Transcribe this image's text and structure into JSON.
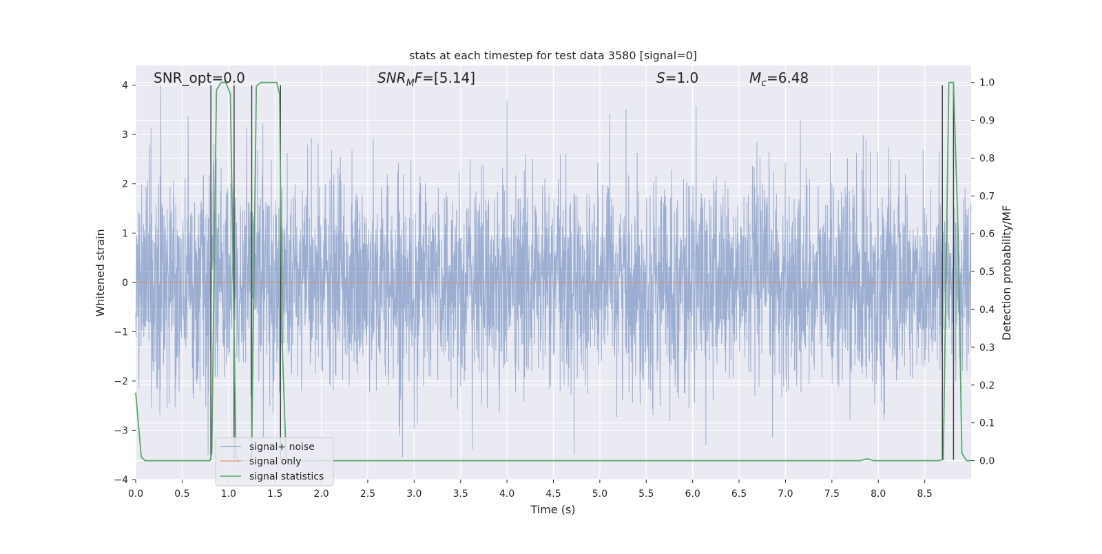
{
  "chart_data": {
    "type": "line",
    "title": "stats at each timestep for test data 3580 [signal=0]",
    "xlabel": "Time (s)",
    "ylabel_left": "Whitened strain",
    "ylabel_right": "Detection probability/MF",
    "xlim": [
      0.0,
      9.0
    ],
    "ylim_left": [
      -4.0,
      4.4
    ],
    "ylim_right": [
      -0.05,
      1.045
    ],
    "x_ticks": [
      0.0,
      0.5,
      1.0,
      1.5,
      2.0,
      2.5,
      3.0,
      3.5,
      4.0,
      4.5,
      5.0,
      5.5,
      6.0,
      6.5,
      7.0,
      7.5,
      8.0,
      8.5
    ],
    "y_left_ticks": [
      -4,
      -3,
      -2,
      -1,
      0,
      1,
      2,
      3,
      4
    ],
    "y_right_ticks": [
      0.0,
      0.1,
      0.2,
      0.3,
      0.4,
      0.5,
      0.6,
      0.7,
      0.8,
      0.9,
      1.0
    ],
    "grid": true,
    "legend_position": "lower-left",
    "annotations": {
      "snr_opt": "SNR_opt=0.0",
      "snr_mf_main": "SNR",
      "snr_mf_sub": "M",
      "snr_mf_tail": "F",
      "snr_mf_value": "=[5.14]",
      "s_symbol": "S",
      "s_value": "=1.0",
      "mc_symbol": "M",
      "mc_sub": "c",
      "mc_value": "=6.48"
    },
    "series": [
      {
        "name": "signal+ noise",
        "axis": "left",
        "color": "#4c72b0",
        "style": "dense noise trace, std ~1, range approx -3.6 to 4.0"
      },
      {
        "name": "signal only",
        "axis": "left",
        "color": "#dd8452",
        "x": [
          0.0,
          9.0
        ],
        "y": [
          0.0,
          0.0
        ]
      },
      {
        "name": "signal statistics",
        "axis": "right",
        "color": "#55a868",
        "x": [
          0.0,
          0.06,
          0.1,
          0.15,
          0.8,
          0.82,
          0.87,
          0.92,
          0.97,
          1.02,
          1.05,
          1.08,
          1.1,
          1.22,
          1.25,
          1.3,
          1.35,
          1.4,
          1.47,
          1.52,
          1.55,
          1.58,
          1.62,
          1.65,
          7.7,
          7.8,
          7.88,
          7.95,
          8.0,
          8.65,
          8.7,
          8.73,
          8.76,
          8.81,
          8.86,
          8.9,
          8.95,
          9.0
        ],
        "y": [
          0.18,
          0.01,
          0.0,
          0.0,
          0.0,
          0.02,
          0.98,
          1.0,
          1.0,
          0.97,
          0.5,
          0.02,
          0.0,
          0.0,
          0.02,
          0.99,
          1.0,
          1.0,
          1.0,
          1.0,
          0.97,
          0.3,
          0.01,
          0.0,
          0.0,
          0.0,
          0.005,
          0.0,
          0.0,
          0.0,
          0.003,
          0.5,
          1.0,
          1.0,
          0.6,
          0.02,
          0.0,
          0.0
        ]
      }
    ],
    "vertical_markers": {
      "color": "#404040",
      "x": [
        0.81,
        1.06,
        1.25,
        1.56,
        8.69,
        8.81
      ],
      "y_top": 4.0,
      "y_bottom": -3.6
    }
  }
}
